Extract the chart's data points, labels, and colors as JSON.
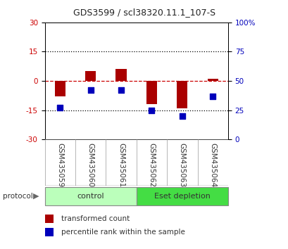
{
  "title": "GDS3599 / scl38320.11.1_107-S",
  "samples": [
    "GSM435059",
    "GSM435060",
    "GSM435061",
    "GSM435062",
    "GSM435063",
    "GSM435064"
  ],
  "transformed_count": [
    -8,
    5,
    6,
    -12,
    -14,
    1
  ],
  "percentile_rank": [
    27,
    42,
    42,
    25,
    20,
    37
  ],
  "ylim_left": [
    -30,
    30
  ],
  "ylim_right": [
    0,
    100
  ],
  "yticks_left": [
    -30,
    -15,
    0,
    15,
    30
  ],
  "yticks_right": [
    0,
    25,
    50,
    75,
    100
  ],
  "ytick_labels_right": [
    "0",
    "25",
    "50",
    "75",
    "100%"
  ],
  "bar_color": "#AA0000",
  "dot_color": "#0000BB",
  "dashed_line_color": "#CC0000",
  "grid_color": "#000000",
  "control_color": "#BBFFBB",
  "eset_color": "#44DD44",
  "label_color_left": "#CC0000",
  "label_color_right": "#0000BB",
  "sample_bg_color": "#CCCCCC",
  "background_color": "#FFFFFF",
  "bar_width": 0.35,
  "dot_size": 35,
  "title_fontsize": 9,
  "tick_fontsize": 7.5,
  "label_fontsize": 7.5,
  "protocol_fontsize": 8,
  "legend_fontsize": 7.5
}
